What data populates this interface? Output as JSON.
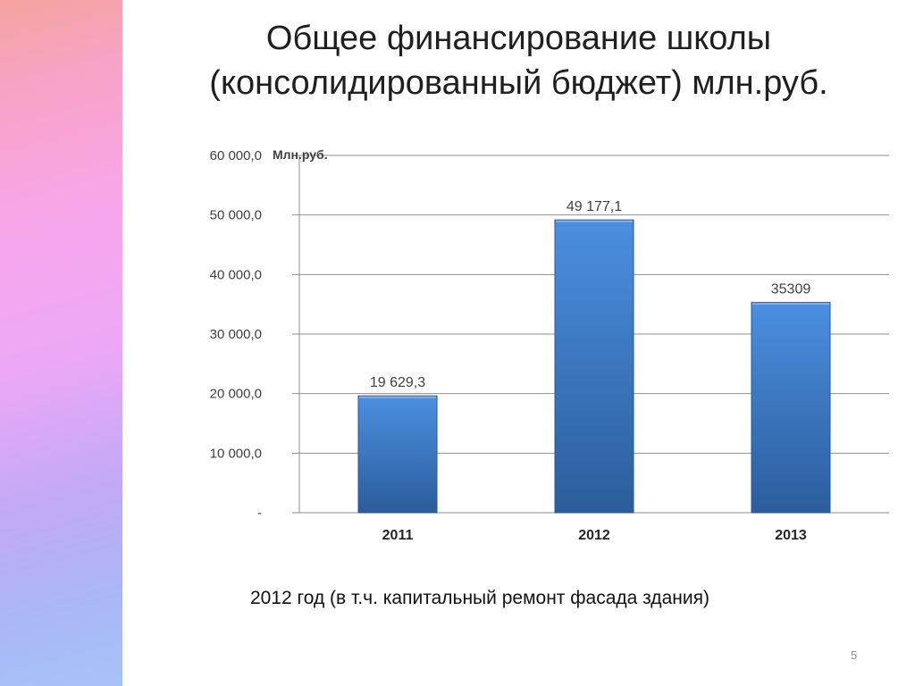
{
  "slide": {
    "title_line1": "Общее финансирование школы",
    "title_line2": "(консолидированный бюджет) млн.руб.",
    "caption": "2012 год (в т.ч. капитальный ремонт фасада здания)",
    "page_number": "5"
  },
  "colors": {
    "bar_top": "#4b8fe0",
    "bar_bottom": "#2c5d9c",
    "grid": "#8f8f8f",
    "text": "#404040"
  },
  "chart_data": {
    "type": "bar",
    "title": "",
    "unit_label": "Млн.руб.",
    "xlabel": "",
    "ylabel": "",
    "categories": [
      "2011",
      "2012",
      "2013"
    ],
    "values": [
      19629.3,
      49177.1,
      35309
    ],
    "data_labels": [
      "19 629,3",
      "49 177,1",
      "35309"
    ],
    "ylim": [
      0,
      60000
    ],
    "yticks": [
      0,
      10000,
      20000,
      30000,
      40000,
      50000,
      60000
    ],
    "ytick_labels": [
      "-",
      "10 000,0",
      "20 000,0",
      "30 000,0",
      "40 000,0",
      "50 000,0",
      "60 000,0"
    ],
    "grid": true,
    "legend": "none"
  }
}
